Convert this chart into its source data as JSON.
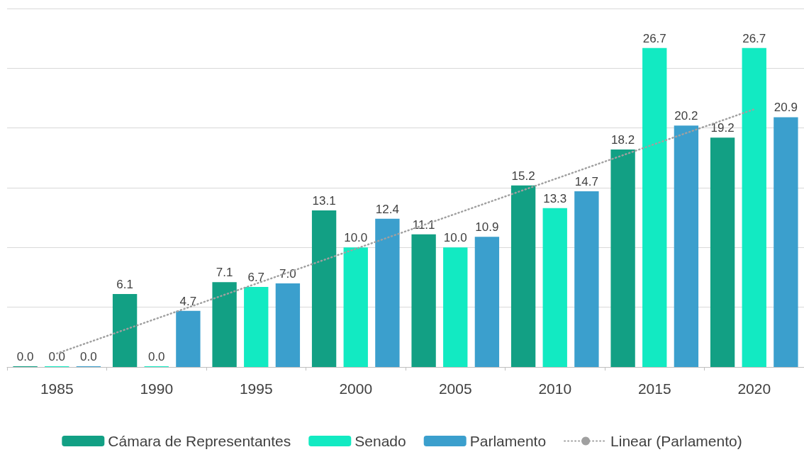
{
  "chart_data": {
    "type": "bar",
    "categories": [
      "1985",
      "1990",
      "1995",
      "2000",
      "2005",
      "2010",
      "2015",
      "2020"
    ],
    "series": [
      {
        "name": "Cámara de Representantes",
        "color": "#12a084",
        "values": [
          0,
          6.1,
          7.1,
          13.1,
          11.1,
          15.2,
          18.2,
          19.2
        ],
        "value_labels": [
          "0.0",
          "6.1",
          "7.1",
          "13.1",
          "11.1",
          "15.2",
          "18.2",
          "19.2"
        ]
      },
      {
        "name": "Senado",
        "color": "#12eac2",
        "values": [
          0,
          0,
          6.7,
          10,
          10,
          13.3,
          26.7,
          26.7
        ],
        "value_labels": [
          "0.0",
          "0.0",
          "6.7",
          "10.0",
          "10.0",
          "13.3",
          "26.7",
          "26.7"
        ]
      },
      {
        "name": "Parlamento",
        "color": "#3b9fcd",
        "values": [
          0,
          4.7,
          7,
          12.4,
          10.9,
          14.7,
          20.2,
          20.9
        ],
        "value_labels": [
          "0.0",
          "4.7",
          "7.0",
          "12.4",
          "10.9",
          "14.7",
          "20.2",
          "20.9"
        ]
      },
      {
        "name": "Linear (Parlamento)",
        "type": "line",
        "color": "#a0a0a0",
        "line_style": "dotted",
        "values": [
          1.13,
          4.05,
          6.97,
          9.89,
          12.81,
          15.73,
          18.65,
          21.57
        ]
      }
    ],
    "ylim": [
      0,
      30
    ],
    "yticks": [
      {
        "value": 0,
        "label": null
      },
      {
        "value": 5,
        "label": null
      },
      {
        "value": 10,
        "label": null
      },
      {
        "value": 15,
        "label": null
      },
      {
        "value": 20,
        "label": null
      },
      {
        "value": 25,
        "label": null
      },
      {
        "value": 30,
        "label": null
      }
    ],
    "tick_labels": "x",
    "grid": "y",
    "legend": "bottom",
    "marker": "none"
  }
}
